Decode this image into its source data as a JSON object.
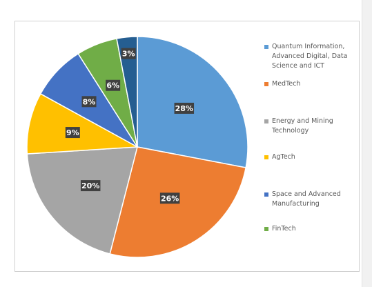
{
  "chart_data": {
    "type": "pie",
    "slices": [
      {
        "label": "Quantum Information, Advanced Digital, Data Science and ICT",
        "value": 28,
        "display": "28%",
        "color": "#5b9bd5"
      },
      {
        "label": "MedTech",
        "value": 26,
        "display": "26%",
        "color": "#ed7d31"
      },
      {
        "label": "Energy and Mining Technology",
        "value": 20,
        "display": "20%",
        "color": "#a5a5a5"
      },
      {
        "label": "AgTech",
        "value": 9,
        "display": "9%",
        "color": "#ffc000"
      },
      {
        "label": "Space and Advanced Manufacturing",
        "value": 8,
        "display": "8%",
        "color": "#4472c4"
      },
      {
        "label": "FinTech",
        "value": 6,
        "display": "6%",
        "color": "#70ad47"
      },
      {
        "label": "",
        "value": 3,
        "display": "3%",
        "color": "#255e91"
      }
    ],
    "legend_placement": "right"
  },
  "legend": {
    "items": [
      {
        "label": "Quantum Information, Advanced Digital, Data Science and ICT",
        "color": "#5b9bd5"
      },
      {
        "label": "MedTech",
        "color": "#ed7d31"
      },
      {
        "label": "Energy and Mining Technology",
        "color": "#a5a5a5"
      },
      {
        "label": "AgTech",
        "color": "#ffc000"
      },
      {
        "label": "Space and Advanced Manufacturing",
        "color": "#4472c4"
      },
      {
        "label": "FinTech",
        "color": "#70ad47"
      }
    ]
  }
}
